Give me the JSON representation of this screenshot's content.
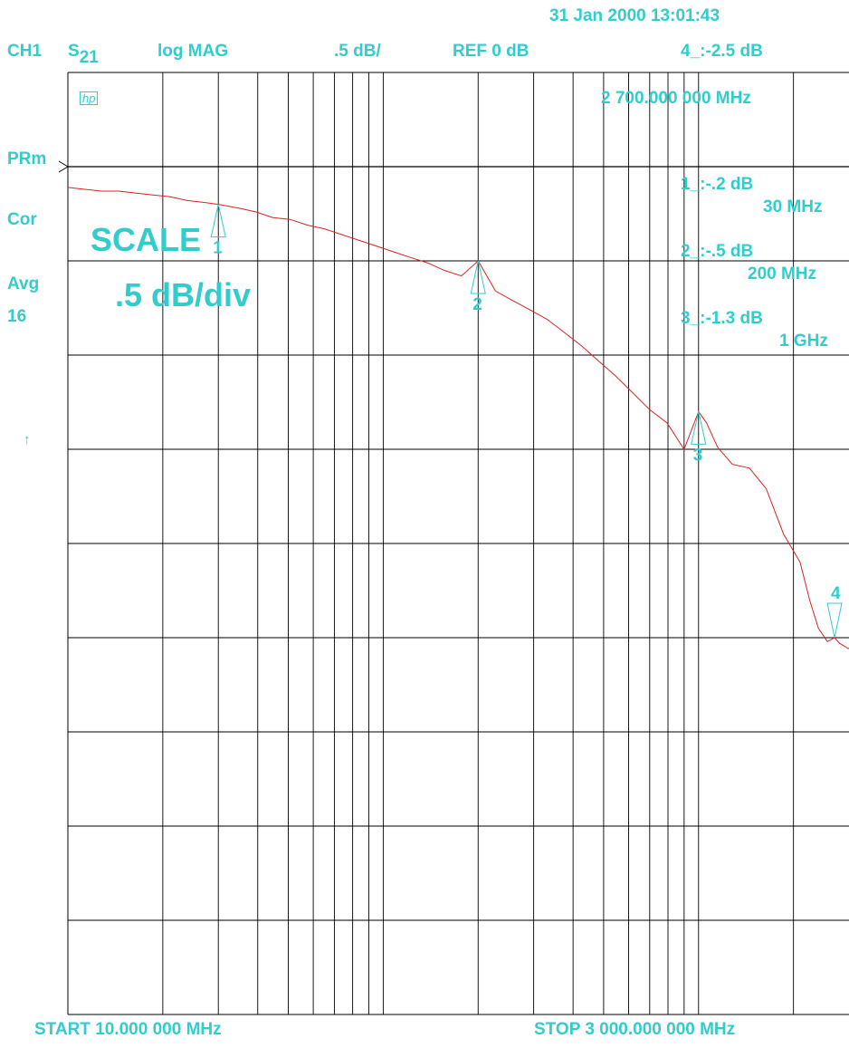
{
  "header": {
    "timestamp": "31 Jan 2000  13:01:43",
    "channel": "CH1",
    "param_letter": "S",
    "param_sub": "21",
    "format": "log MAG",
    "scale": ".5 dB/",
    "ref": "REF 0 dB",
    "active_marker": "4_:-2.5 dB",
    "active_marker_freq": "2 700.000 000 MHz"
  },
  "logo": "hp",
  "annotations": {
    "prm": "PRm",
    "cor": "Cor",
    "avg": "Avg",
    "avg_count": "16",
    "arrow": "↑",
    "scale_title": "SCALE",
    "scale_value": ".5 dB/div"
  },
  "markers": [
    {
      "id": "1",
      "readout": "1_:-.2  dB",
      "freq_label": "30 MHz"
    },
    {
      "id": "2",
      "readout": "2_:-.5  dB",
      "freq_label": "200 MHz"
    },
    {
      "id": "3",
      "readout": "3_:-1.3 dB",
      "freq_label": "1 GHz"
    },
    {
      "id": "4"
    }
  ],
  "footer": {
    "start": "START   10.000 000 MHz",
    "stop": "STOP 3 000.000 000 MHz"
  },
  "colors": {
    "annotation": "#33cccc",
    "trace": "#e02020",
    "grid": "#000000"
  },
  "chart_data": {
    "type": "line",
    "x_scale": "log",
    "x_unit": "MHz",
    "xlim": [
      10,
      3000
    ],
    "ylim": [
      -4.5,
      0.5
    ],
    "y_reference": 0,
    "y_per_div": 0.5,
    "grid": true,
    "series": [
      {
        "x": [
          10,
          11.3,
          12.8,
          14.5,
          16.4,
          18.6,
          21.1,
          23.9,
          27.1,
          30,
          34.8,
          39.4,
          44.7,
          50.7,
          57.4,
          65.1,
          73.7,
          83.5,
          94.6,
          107,
          121,
          138,
          156,
          177,
          200,
          227,
          257,
          292,
          331,
          375,
          425,
          481,
          545,
          618,
          700,
          794,
          900,
          1000,
          1060,
          1150,
          1280,
          1450,
          1640,
          1860,
          2100,
          2250,
          2400,
          2560,
          2700,
          2800,
          3000
        ],
        "y": [
          -0.11,
          -0.12,
          -0.13,
          -0.13,
          -0.14,
          -0.15,
          -0.16,
          -0.18,
          -0.19,
          -0.2,
          -0.22,
          -0.24,
          -0.27,
          -0.28,
          -0.31,
          -0.33,
          -0.36,
          -0.39,
          -0.42,
          -0.45,
          -0.48,
          -0.51,
          -0.55,
          -0.58,
          -0.5,
          -0.66,
          -0.71,
          -0.76,
          -0.81,
          -0.88,
          -0.95,
          -1.03,
          -1.11,
          -1.2,
          -1.29,
          -1.36,
          -1.5,
          -1.3,
          -1.36,
          -1.49,
          -1.58,
          -1.6,
          -1.71,
          -1.95,
          -2.1,
          -2.3,
          -2.45,
          -2.52,
          -2.5,
          -2.53,
          -2.56
        ]
      }
    ],
    "markers": [
      {
        "id": "1",
        "x": 30,
        "y": -0.2
      },
      {
        "id": "2",
        "x": 200,
        "y": -0.5
      },
      {
        "id": "3",
        "x": 1000,
        "y": -1.3
      },
      {
        "id": "4",
        "x": 2700,
        "y": -2.5
      }
    ]
  }
}
